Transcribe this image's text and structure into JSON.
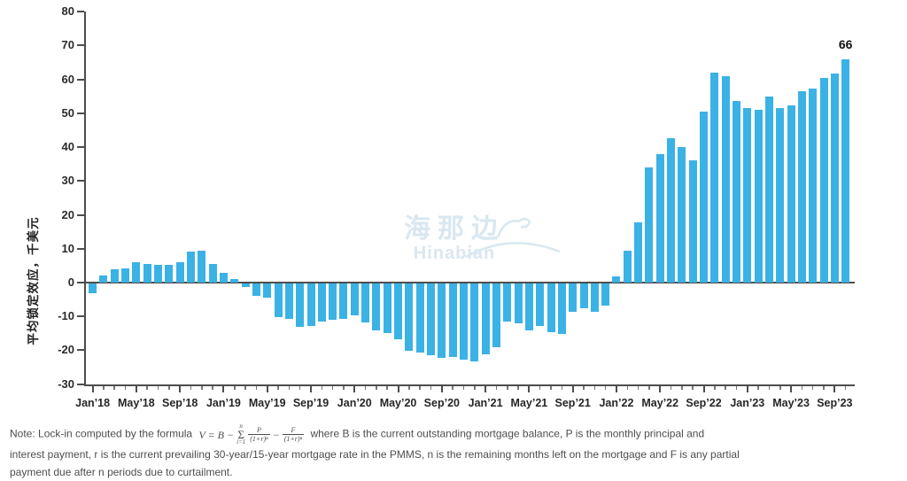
{
  "accent_color": "#3bb2e5",
  "axis_color": "#4d4d4d",
  "annotation": {
    "last_value_label": "66"
  },
  "watermark": {
    "line1": "海那边",
    "line2": "Hinabian"
  },
  "y_axis": {
    "title": "平均锁定效应，千美元",
    "ticks": [
      80,
      70,
      60,
      50,
      40,
      30,
      20,
      10,
      0,
      -10,
      -20,
      -30
    ]
  },
  "x_axis": {
    "labels": [
      "Jan’18",
      "May’18",
      "Sep’18",
      "Jan’19",
      "May’19",
      "Sep’19",
      "Jan’20",
      "May’20",
      "Sep’20",
      "Jan’21",
      "May’21",
      "Sep’21",
      "Jan’22",
      "May’22",
      "Sep’22",
      "Jan’23",
      "May’23",
      "Sep’23"
    ]
  },
  "note": {
    "line1_pre": "Note: Lock-in computed by the formula",
    "formula": {
      "lhs": "V = B −",
      "sigma": "Σ",
      "sigma_sup": "n",
      "sigma_sub": "i=1",
      "frac1_num": "P",
      "frac1_den": "(1+r)ⁿ",
      "minus": "−",
      "frac2_num": "F",
      "frac2_den": "(1+r)ⁿ"
    },
    "line1_post": "where B is the current outstanding mortgage balance, P is the monthly principal and",
    "line2": "interest payment, r is the current prevailing 30-year/15-year mortgage rate in the PMMS, n is the remaining months left on the mortgage and F is any partial",
    "line3": "payment due after n periods due to curtailment."
  },
  "chart_data": {
    "type": "bar",
    "title": "",
    "xlabel": "",
    "ylabel": "平均锁定效应，千美元",
    "ylim": [
      -30,
      80
    ],
    "grid": false,
    "legend": "none",
    "bar_color": "#3bb2e5",
    "labeled_tick_every": 4,
    "categories": [
      "Jan’18",
      "Feb’18",
      "Mar’18",
      "Apr’18",
      "May’18",
      "Jun’18",
      "Jul’18",
      "Aug’18",
      "Sep’18",
      "Oct’18",
      "Nov’18",
      "Dec’18",
      "Jan’19",
      "Feb’19",
      "Mar’19",
      "Apr’19",
      "May’19",
      "Jun’19",
      "Jul’19",
      "Aug’19",
      "Sep’19",
      "Oct’19",
      "Nov’19",
      "Dec’19",
      "Jan’20",
      "Feb’20",
      "Mar’20",
      "Apr’20",
      "May’20",
      "Jun’20",
      "Jul’20",
      "Aug’20",
      "Sep’20",
      "Oct’20",
      "Nov’20",
      "Dec’20",
      "Jan’21",
      "Feb’21",
      "Mar’21",
      "Apr’21",
      "May’21",
      "Jun’21",
      "Jul’21",
      "Aug’21",
      "Sep’21",
      "Oct’21",
      "Nov’21",
      "Dec’21",
      "Jan’22",
      "Feb’22",
      "Mar’22",
      "Apr’22",
      "May’22",
      "Jun’22",
      "Jul’22",
      "Aug’22",
      "Sep’22",
      "Oct’22",
      "Nov’22",
      "Dec’22",
      "Jan’23",
      "Feb’23",
      "Mar’23",
      "Apr’23",
      "May’23",
      "Jun’23",
      "Jul’23",
      "Aug’23",
      "Sep’23",
      "Oct’23"
    ],
    "values": [
      -3,
      2,
      4,
      4.2,
      6,
      5.6,
      5.1,
      5.2,
      6,
      9.1,
      9.5,
      5.6,
      2.8,
      1,
      -1.1,
      -3.7,
      -4.2,
      -9.9,
      -10.5,
      -12.8,
      -12.5,
      -11.2,
      -10.6,
      -10.4,
      -9.3,
      -11.5,
      -13.9,
      -14.7,
      -16.5,
      -19.8,
      -20.4,
      -21.3,
      -22,
      -21.8,
      -22.5,
      -23.1,
      -20.9,
      -18.7,
      -11.2,
      -11.7,
      -13.9,
      -12.5,
      -14.5,
      -15,
      -8.3,
      -7.3,
      -8.3,
      -6.6,
      1.8,
      9.4,
      17.7,
      33.9,
      37.9,
      42.7,
      40.1,
      36.1,
      50.6,
      62,
      61,
      53.7,
      51.5,
      50.9,
      55,
      51.6,
      52.4,
      56.4,
      57.4,
      60.4,
      61.6,
      66
    ]
  }
}
